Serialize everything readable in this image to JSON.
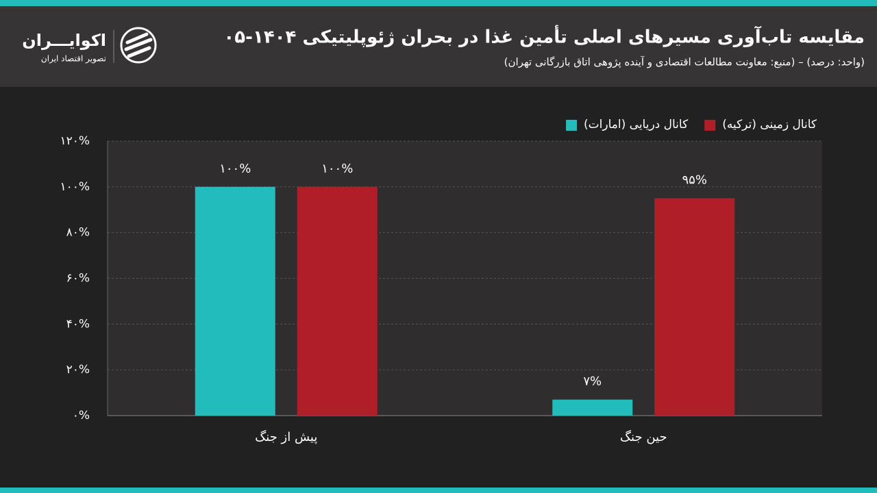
{
  "chart_data": {
    "type": "bar",
    "title": "مقایسه تاب‌آوری مسیرهای اصلی تأمین غذا در بحران ژئوپلیتیکی ۱۴۰۴-۰۵",
    "subtitle": "(واحد: درصد) – (منبع: معاونت مطالعات اقتصادی و آینده پژوهی اتاق بازرگانی تهران)",
    "brand": "اکوایـــران",
    "brand_tagline": "تصویر اقتصاد ایران",
    "categories": [
      "پیش از جنگ",
      "حین جنگ"
    ],
    "series": [
      {
        "name": "کانال دریایی (امارات)",
        "color": "#22bcbc",
        "values": [
          100,
          7
        ],
        "value_labels": [
          "۱۰۰%",
          "۷%"
        ]
      },
      {
        "name": "کانال زمینی (ترکیه)",
        "color": "#b01f28",
        "values": [
          100,
          95
        ],
        "value_labels": [
          "۱۰۰%",
          "۹۵%"
        ]
      }
    ],
    "ylim": [
      0,
      120
    ],
    "yticks": [
      {
        "value": 0,
        "label": "۰%"
      },
      {
        "value": 20,
        "label": "۲۰%"
      },
      {
        "value": 40,
        "label": "۴۰%"
      },
      {
        "value": 60,
        "label": "۶۰%"
      },
      {
        "value": 80,
        "label": "۸۰%"
      },
      {
        "value": 100,
        "label": "۱۰۰%"
      },
      {
        "value": 120,
        "label": "۱۲۰%"
      }
    ],
    "grid": true,
    "legend": "top-right"
  }
}
